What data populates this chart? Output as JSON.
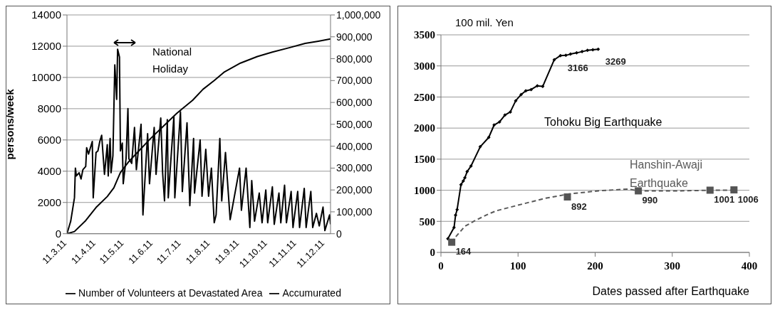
{
  "chart_data": [
    {
      "type": "line",
      "ylabel": "persons/week",
      "annotations": [
        "National Holiday"
      ],
      "xlim": [
        "--03-11",
        "--12-17"
      ],
      "xticks": [
        {
          "value": "--03-11",
          "label": "11.3.11"
        },
        {
          "value": "--04-11",
          "label": "11.4.11"
        },
        {
          "value": "--05-11",
          "label": "11.5.11"
        },
        {
          "value": "--06-11",
          "label": "11.6.11"
        },
        {
          "value": "--07-11",
          "label": "11.7.11"
        },
        {
          "value": "--08-11",
          "label": "11.8.11"
        },
        {
          "value": "--09-11",
          "label": "11.9.11"
        },
        {
          "value": "--10-11",
          "label": "11.10.11"
        },
        {
          "value": "--11-11",
          "label": "11.11.11"
        },
        {
          "value": "--12-11",
          "label": "11.12.11"
        }
      ],
      "ylim": [
        0,
        14000
      ],
      "yticks": [
        0,
        2000,
        4000,
        6000,
        8000,
        10000,
        12000,
        14000
      ],
      "y2lim": [
        0,
        1000000
      ],
      "y2ticks": [
        0,
        {
          "value": 100000,
          "label": "100,000"
        },
        {
          "value": 200000,
          "label": "200,000"
        },
        {
          "value": 300000,
          "label": "300,000"
        },
        {
          "value": 400000,
          "label": "400,000"
        },
        {
          "value": 500000,
          "label": "500,000"
        },
        {
          "value": 600000,
          "label": "600,000"
        },
        {
          "value": 700000,
          "label": "700,000"
        },
        {
          "value": 800000,
          "label": "800,000"
        },
        {
          "value": 900000,
          "label": "900,000"
        },
        {
          "value": 1000000,
          "label": "1,000,000"
        }
      ],
      "grid": "y",
      "legend": "bottom",
      "line_style": "solid",
      "marker": "none",
      "series": [
        {
          "name": "Number of Volunteers at Devastated Area",
          "color": "#000000",
          "x": [
            "--03-11",
            "--03-14",
            "--03-15",
            "--03-19",
            "--03-20",
            "--03-21",
            "--03-24",
            "--03-26",
            "--03-28",
            "--03-31",
            "--04-01",
            "--04-03",
            "--04-05",
            "--04-07",
            "--04-08",
            "--04-11",
            "--04-13",
            "--04-15",
            "--04-17",
            "--04-20",
            "--04-23",
            "--04-24",
            "--04-26",
            "--04-27",
            "--04-29",
            "--05-01",
            "--05-03",
            "--05-04",
            "--05-06",
            "--05-07",
            "--05-09",
            "--05-10",
            "--05-13",
            "--05-15",
            "--05-16",
            "--05-19",
            "--05-22",
            "--05-24",
            "--05-29",
            "--05-31",
            "--06-02",
            "--06-05",
            "--06-07",
            "--06-12",
            "--06-14",
            "--06-19",
            "--06-21",
            "--06-23",
            "--06-26",
            "--06-27",
            "--07-03",
            "--07-04",
            "--07-10",
            "--07-12",
            "--07-17",
            "--07-20",
            "--07-24",
            "--07-25",
            "--07-31",
            "--08-02",
            "--08-06",
            "--08-09",
            "--08-12",
            "--08-15",
            "--08-17",
            "--08-21",
            "--08-23",
            "--08-27",
            "--09-01",
            "--09-11",
            "--09-13",
            "--09-18",
            "--09-22",
            "--09-24",
            "--09-27",
            "--10-02",
            "--10-05",
            "--10-09",
            "--10-11",
            "--10-16",
            "--10-18",
            "--10-23",
            "--10-25",
            "--10-29",
            "--10-31",
            "--11-05",
            "--11-07",
            "--11-12",
            "--11-14",
            "--11-19",
            "--11-21",
            "--11-26",
            "--11-28",
            "--12-02",
            "--12-05",
            "--12-09",
            "--12-11",
            "--12-16",
            "--12-17"
          ],
          "values": [
            0,
            600,
            800,
            2300,
            4200,
            3700,
            3900,
            3500,
            4100,
            4300,
            5500,
            5100,
            5500,
            5900,
            2300,
            5200,
            5300,
            5900,
            6300,
            3800,
            5700,
            3700,
            6100,
            3900,
            5000,
            10800,
            8600,
            11800,
            11300,
            5300,
            5800,
            3200,
            4800,
            8000,
            4800,
            4500,
            6800,
            4100,
            7000,
            1200,
            3300,
            6400,
            3200,
            6800,
            3800,
            7400,
            3900,
            2100,
            7300,
            2300,
            7500,
            2300,
            7800,
            2700,
            7100,
            1800,
            6100,
            2600,
            6000,
            2400,
            5400,
            2400,
            4200,
            700,
            1200,
            6100,
            2100,
            5200,
            900,
            4200,
            1500,
            4200,
            400,
            3400,
            800,
            2600,
            700,
            2800,
            700,
            3000,
            600,
            2600,
            700,
            3100,
            700,
            2700,
            400,
            2700,
            400,
            2900,
            400,
            2700,
            400,
            1300,
            500,
            1700,
            200,
            1200,
            600
          ]
        },
        {
          "name": "Accumurated",
          "color": "#000000",
          "axis": "y2",
          "x": [
            "--03-11",
            "--03-19",
            "--03-31",
            "--04-11",
            "--04-23",
            "--04-30",
            "--05-07",
            "--05-16",
            "--05-27",
            "--06-07",
            "--06-19",
            "--07-06",
            "--07-23",
            "--08-03",
            "--08-15",
            "--08-26",
            "--09-12",
            "--09-30",
            "--10-16",
            "--11-03",
            "--11-20",
            "--12-04",
            "--12-17"
          ],
          "values": [
            0,
            10000,
            60000,
            120000,
            170000,
            210000,
            280000,
            330000,
            380000,
            430000,
            480000,
            550000,
            610000,
            660000,
            700000,
            740000,
            780000,
            810000,
            830000,
            850000,
            870000,
            880000,
            890000
          ]
        }
      ]
    },
    {
      "type": "line",
      "ylabel": "100 mil. Yen",
      "xlabel": "Dates passed after Earthquake",
      "xlim": [
        0,
        400
      ],
      "xticks": [
        0,
        100,
        200,
        300,
        400
      ],
      "ylim": [
        0,
        3500
      ],
      "yticks": [
        0,
        500,
        1000,
        1500,
        2000,
        2500,
        3000,
        3500
      ],
      "grid": "y",
      "legend": false,
      "series": [
        {
          "name": "Tohoku Big Earthquake",
          "color": "#000000",
          "marker": "diamond",
          "line_style": "solid",
          "x": [
            9,
            17,
            19,
            21,
            26,
            29,
            31,
            34,
            39,
            51,
            62,
            69,
            76,
            83,
            90,
            97,
            104,
            110,
            117,
            125,
            132,
            147,
            155,
            162,
            168,
            176,
            183,
            190,
            197,
            204
          ],
          "values": [
            220,
            400,
            600,
            690,
            1090,
            1150,
            1200,
            1300,
            1390,
            1700,
            1850,
            2050,
            2100,
            2210,
            2260,
            2440,
            2540,
            2600,
            2620,
            2680,
            2670,
            3100,
            3166,
            3170,
            3190,
            3210,
            3230,
            3250,
            3260,
            3269
          ],
          "value_labels": [
            null,
            null,
            null,
            null,
            null,
            null,
            null,
            null,
            null,
            null,
            null,
            null,
            null,
            null,
            null,
            null,
            null,
            null,
            null,
            null,
            null,
            null,
            "3166",
            null,
            null,
            null,
            null,
            null,
            null,
            "3269"
          ]
        },
        {
          "name": "Hanshin-Awaji Earthquake",
          "color": "#595959",
          "marker": "none",
          "line_style": "dashed",
          "x": [
            14,
            17,
            31,
            44,
            62,
            72,
            100,
            135,
            166,
            204,
            243,
            256,
            309,
            349,
            380
          ],
          "values": [
            160,
            220,
            420,
            510,
            620,
            670,
            760,
            870,
            940,
            990,
            1020,
            990,
            990,
            1000,
            1000
          ]
        },
        {
          "type": "scatter",
          "color": "#555555",
          "marker": "square",
          "x": [
            14,
            164,
            256,
            349,
            380
          ],
          "values": [
            164,
            892,
            990,
            1001,
            1006
          ],
          "value_labels": [
            "164",
            "892",
            "990",
            "1001",
            "1006"
          ]
        }
      ]
    }
  ]
}
